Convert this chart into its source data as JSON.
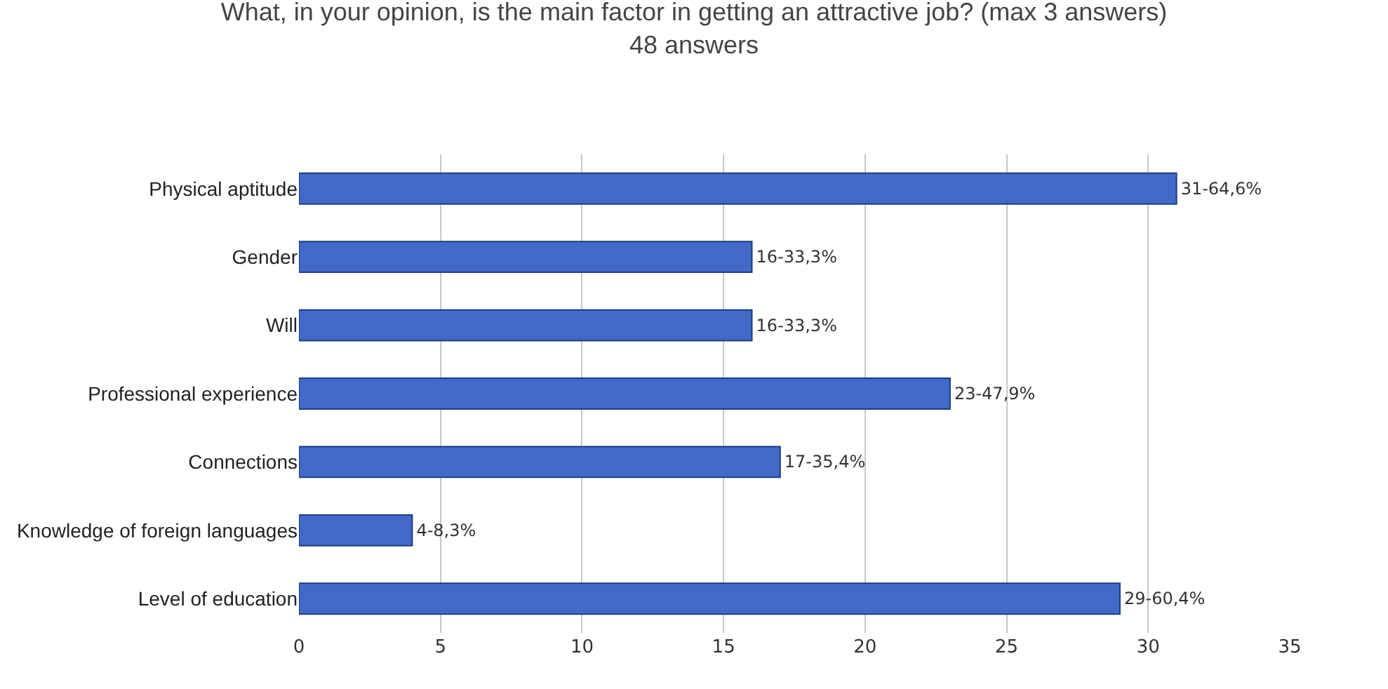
{
  "chart_data": {
    "type": "bar",
    "orientation": "horizontal",
    "title": "What, in your opinion, is the main factor in getting an attractive job? (max 3 answers)",
    "subtitle": "48 answers",
    "categories": [
      "Physical aptitude",
      "Gender",
      "Will",
      "Professional experience",
      "Connections",
      "Knowledge of foreign languages",
      "Level of education"
    ],
    "values": [
      31,
      16,
      16,
      23,
      17,
      4,
      29
    ],
    "value_labels": [
      "31-64,6%",
      "16-33,3%",
      "16-33,3%",
      "23-47,9%",
      "17-35,4%",
      "4-8,3%",
      "29-60,4%"
    ],
    "color": "#4169c8",
    "xlim": [
      0,
      35
    ],
    "xticks": [
      0,
      5,
      10,
      15,
      20,
      25,
      30,
      35
    ],
    "grid": "x",
    "legend": false
  }
}
